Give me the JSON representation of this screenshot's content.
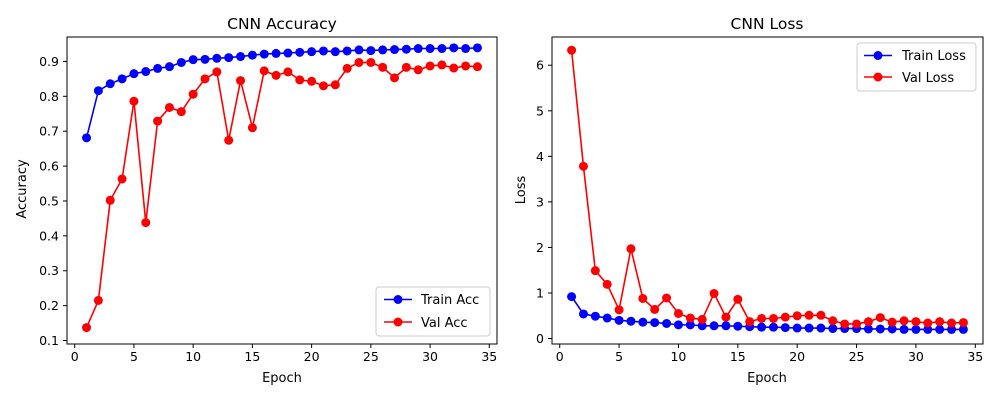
{
  "chart_data": [
    {
      "type": "line",
      "title": "CNN Accuracy",
      "xlabel": "Epoch",
      "ylabel": "Accuracy",
      "xlim": [
        -0.65,
        35.65
      ],
      "ylim": [
        0.09,
        0.97
      ],
      "xticks": [
        0,
        5,
        10,
        15,
        20,
        25,
        30,
        35
      ],
      "yticks": [
        0.1,
        0.2,
        0.3,
        0.4,
        0.5,
        0.6,
        0.7,
        0.8,
        0.9
      ],
      "grid": false,
      "legend_position": "lower-right",
      "x": [
        1,
        2,
        3,
        4,
        5,
        6,
        7,
        8,
        9,
        10,
        11,
        12,
        13,
        14,
        15,
        16,
        17,
        18,
        19,
        20,
        21,
        22,
        23,
        24,
        25,
        26,
        27,
        28,
        29,
        30,
        31,
        32,
        33,
        34
      ],
      "series": [
        {
          "name": "Train Acc",
          "color": "#0000ff",
          "values": [
            0.681,
            0.816,
            0.836,
            0.85,
            0.865,
            0.871,
            0.88,
            0.885,
            0.897,
            0.905,
            0.906,
            0.909,
            0.911,
            0.914,
            0.918,
            0.921,
            0.923,
            0.924,
            0.926,
            0.928,
            0.93,
            0.928,
            0.93,
            0.933,
            0.931,
            0.933,
            0.934,
            0.935,
            0.937,
            0.937,
            0.937,
            0.939,
            0.937,
            0.939
          ]
        },
        {
          "name": "Val Acc",
          "color": "#ff0000",
          "values": [
            0.137,
            0.215,
            0.502,
            0.563,
            0.786,
            0.438,
            0.729,
            0.768,
            0.756,
            0.806,
            0.85,
            0.87,
            0.674,
            0.845,
            0.71,
            0.873,
            0.86,
            0.87,
            0.847,
            0.843,
            0.83,
            0.833,
            0.88,
            0.897,
            0.897,
            0.883,
            0.853,
            0.883,
            0.876,
            0.887,
            0.89,
            0.881,
            0.887,
            0.885
          ]
        }
      ]
    },
    {
      "type": "line",
      "title": "CNN Loss",
      "xlabel": "Epoch",
      "ylabel": "Loss",
      "xlim": [
        -0.65,
        35.65
      ],
      "ylim": [
        -0.12,
        6.62
      ],
      "xticks": [
        0,
        5,
        10,
        15,
        20,
        25,
        30,
        35
      ],
      "yticks": [
        0,
        1,
        2,
        3,
        4,
        5,
        6
      ],
      "grid": false,
      "legend_position": "upper-right",
      "x": [
        1,
        2,
        3,
        4,
        5,
        6,
        7,
        8,
        9,
        10,
        11,
        12,
        13,
        14,
        15,
        16,
        17,
        18,
        19,
        20,
        21,
        22,
        23,
        24,
        25,
        26,
        27,
        28,
        29,
        30,
        31,
        32,
        33,
        34
      ],
      "series": [
        {
          "name": "Train Loss",
          "color": "#0000ff",
          "values": [
            0.92,
            0.54,
            0.49,
            0.45,
            0.4,
            0.38,
            0.36,
            0.35,
            0.33,
            0.3,
            0.3,
            0.28,
            0.28,
            0.28,
            0.27,
            0.26,
            0.25,
            0.25,
            0.24,
            0.23,
            0.23,
            0.23,
            0.22,
            0.22,
            0.22,
            0.21,
            0.21,
            0.21,
            0.2,
            0.2,
            0.2,
            0.2,
            0.2,
            0.2
          ]
        },
        {
          "name": "Val Loss",
          "color": "#ff0000",
          "values": [
            6.33,
            3.78,
            1.49,
            1.19,
            0.63,
            1.97,
            0.88,
            0.64,
            0.89,
            0.55,
            0.45,
            0.42,
            0.99,
            0.47,
            0.86,
            0.37,
            0.44,
            0.44,
            0.47,
            0.5,
            0.51,
            0.51,
            0.39,
            0.32,
            0.32,
            0.37,
            0.46,
            0.36,
            0.39,
            0.37,
            0.34,
            0.37,
            0.34,
            0.35
          ]
        }
      ]
    }
  ]
}
